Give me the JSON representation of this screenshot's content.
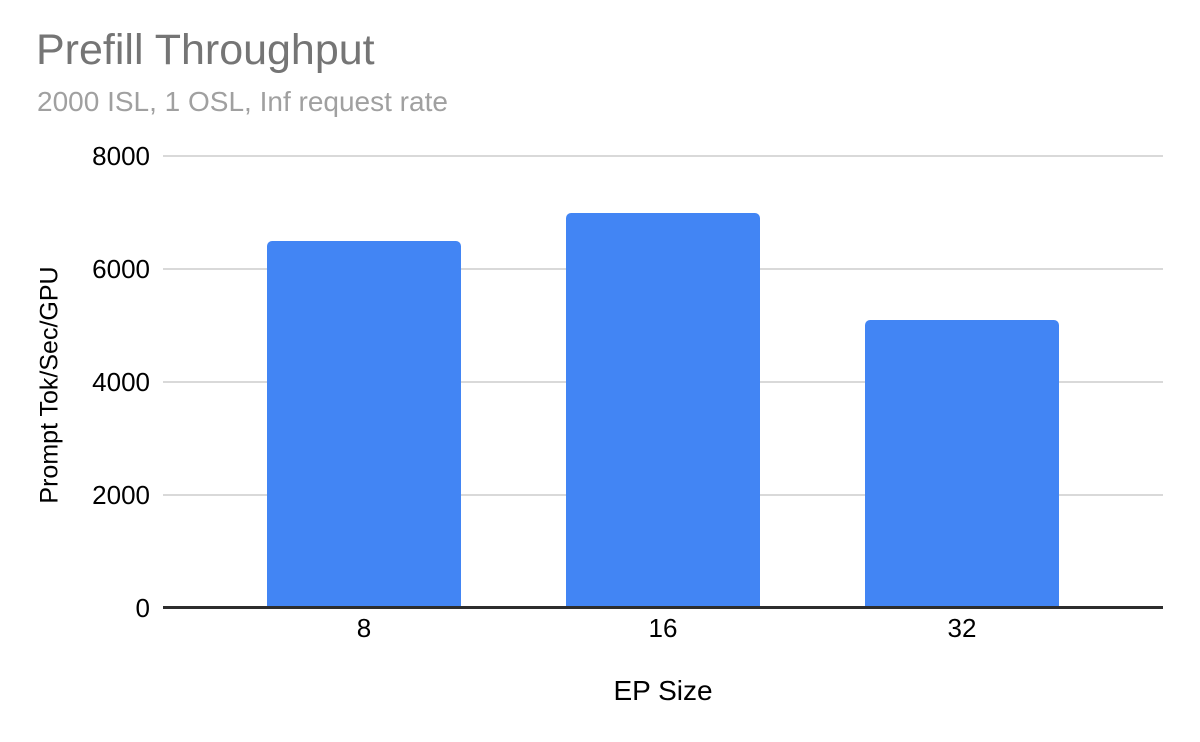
{
  "chart_data": {
    "type": "bar",
    "title": "Prefill Throughput",
    "subtitle": "2000 ISL, 1 OSL, Inf request rate",
    "xlabel": "EP Size",
    "ylabel": "Prompt Tok/Sec/GPU",
    "categories": [
      "8",
      "16",
      "32"
    ],
    "values": [
      6500,
      7000,
      5100
    ],
    "ylim": [
      0,
      8000
    ],
    "yticks": [
      0,
      2000,
      4000,
      6000,
      8000
    ],
    "grid": true,
    "legend": "none",
    "colors": {
      "bar": "#4285f4",
      "gridline": "#d9d9d9",
      "axis_line": "#2d2d2d",
      "title": "#757575",
      "subtitle": "#a0a0a0",
      "tick_label": "#000000",
      "background": "#ffffff"
    }
  }
}
